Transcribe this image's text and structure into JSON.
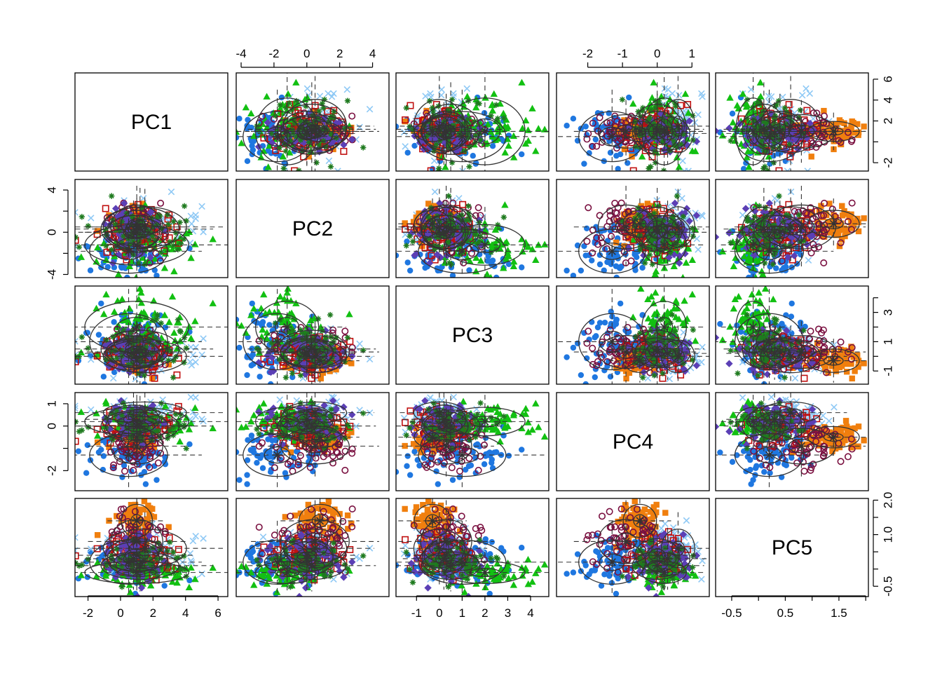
{
  "chart_data": {
    "type": "scatter",
    "subtype": "scatterplot-matrix",
    "variables": [
      "PC1",
      "PC2",
      "PC3",
      "PC4",
      "PC5"
    ],
    "ranges": {
      "PC1": [
        -2.8,
        6.6
      ],
      "PC2": [
        -4.3,
        5.0
      ],
      "PC3": [
        -1.9,
        4.8
      ],
      "PC4": [
        -2.9,
        1.5
      ],
      "PC5": [
        -0.8,
        2.05
      ]
    },
    "ticks": {
      "PC1": [
        -2,
        0,
        2,
        4,
        6
      ],
      "PC2": [
        -4,
        -2,
        0,
        2,
        4
      ],
      "PC3": [
        -1,
        0,
        1,
        2,
        3,
        4
      ],
      "PC4": [
        -2,
        -1,
        0,
        1
      ],
      "PC5": [
        -0.5,
        0,
        0.5,
        1.0,
        1.5,
        2.0
      ]
    },
    "tick_labels": {
      "PC1": [
        "-2",
        "0",
        "2",
        "4",
        "6"
      ],
      "PC2": [
        "-4",
        "-2",
        "0",
        "2",
        "4"
      ],
      "PC3": [
        "-1",
        "0",
        "1",
        "2",
        "3",
        "4"
      ],
      "PC4": [
        "-2",
        "-1",
        "0",
        "1"
      ],
      "PC5_bottom": [
        "-0.5",
        "0.5",
        "1.5"
      ],
      "PC5_right": [
        "-0.5",
        "1.0",
        "2.0"
      ],
      "PC1_right": [
        "-2",
        "2",
        "4",
        "6"
      ],
      "PC3_right": [
        "-1",
        "1",
        "3"
      ],
      "PC2_left": [
        "-4",
        "0",
        "4"
      ],
      "PC4_left": [
        "-2",
        "0",
        "1"
      ],
      "PC1_bottom": [
        "-2",
        "0",
        "2",
        "4",
        "6"
      ],
      "PC3_bottom": [
        "-1",
        "0",
        "1",
        "2",
        "3",
        "4"
      ],
      "PC2_top": [
        "-4",
        "-2",
        "0",
        "2",
        "4"
      ],
      "PC4_top": [
        "-2",
        "-1",
        "0",
        "1"
      ]
    },
    "groups": [
      {
        "color": "#1f77e0",
        "marker": "filled-circle",
        "center": {
          "PC1": 0.5,
          "PC2": -1.8,
          "PC3": 1.0,
          "PC4": -1.3,
          "PC5": 0.2
        },
        "spread": {
          "PC1": 1.5,
          "PC2": 1.3,
          "PC3": 1.2,
          "PC4": 0.6,
          "PC5": 0.4
        }
      },
      {
        "color": "#8fc9f5",
        "marker": "x",
        "center": {
          "PC1": 1.5,
          "PC2": 0.5,
          "PC3": 0.0,
          "PC4": 0.6,
          "PC5": 0.6
        },
        "spread": {
          "PC1": 1.6,
          "PC2": 1.2,
          "PC3": 0.7,
          "PC4": 0.3,
          "PC5": 0.35
        }
      },
      {
        "color": "#f07f0e",
        "marker": "filled-square",
        "center": {
          "PC1": 1.0,
          "PC2": 0.8,
          "PC3": -0.3,
          "PC4": -0.5,
          "PC5": 1.4
        },
        "spread": {
          "PC1": 0.6,
          "PC2": 0.8,
          "PC3": 0.5,
          "PC4": 0.3,
          "PC5": 0.3
        }
      },
      {
        "color": "#12c012",
        "marker": "filled-triangle",
        "center": {
          "PC1": 1.0,
          "PC2": -1.2,
          "PC3": 2.0,
          "PC4": 0.2,
          "PC5": -0.1
        },
        "spread": {
          "PC1": 2.0,
          "PC2": 1.2,
          "PC3": 1.1,
          "PC4": 0.4,
          "PC5": 0.2
        }
      },
      {
        "color": "#7a1040",
        "marker": "open-circle",
        "center": {
          "PC1": 1.0,
          "PC2": 0.5,
          "PC3": 0.3,
          "PC4": -0.9,
          "PC5": 0.8
        },
        "spread": {
          "PC1": 1.0,
          "PC2": 1.3,
          "PC3": 0.7,
          "PC4": 0.5,
          "PC5": 0.4
        }
      },
      {
        "color": "#c01010",
        "marker": "open-square",
        "center": {
          "PC1": 1.0,
          "PC2": 0.0,
          "PC3": 0.3,
          "PC4": 0.0,
          "PC5": 0.4
        },
        "spread": {
          "PC1": 1.2,
          "PC2": 1.0,
          "PC3": 0.6,
          "PC4": 0.4,
          "PC5": 0.3
        }
      },
      {
        "color": "#5b3fb5",
        "marker": "filled-diamond",
        "center": {
          "PC1": 0.8,
          "PC2": 0.0,
          "PC3": 0.2,
          "PC4": 0.3,
          "PC5": 0.3
        },
        "spread": {
          "PC1": 1.0,
          "PC2": 1.0,
          "PC3": 0.6,
          "PC4": 0.4,
          "PC5": 0.3
        }
      },
      {
        "color": "#1e7a1e",
        "marker": "asterisk",
        "center": {
          "PC1": 1.2,
          "PC2": 0.3,
          "PC3": 0.5,
          "PC4": 0.0,
          "PC5": 0.1
        },
        "spread": {
          "PC1": 1.5,
          "PC2": 1.3,
          "PC3": 0.8,
          "PC4": 0.45,
          "PC5": 0.25
        }
      }
    ],
    "ellipse_color": "#333333",
    "grid": false,
    "legend": "none"
  }
}
